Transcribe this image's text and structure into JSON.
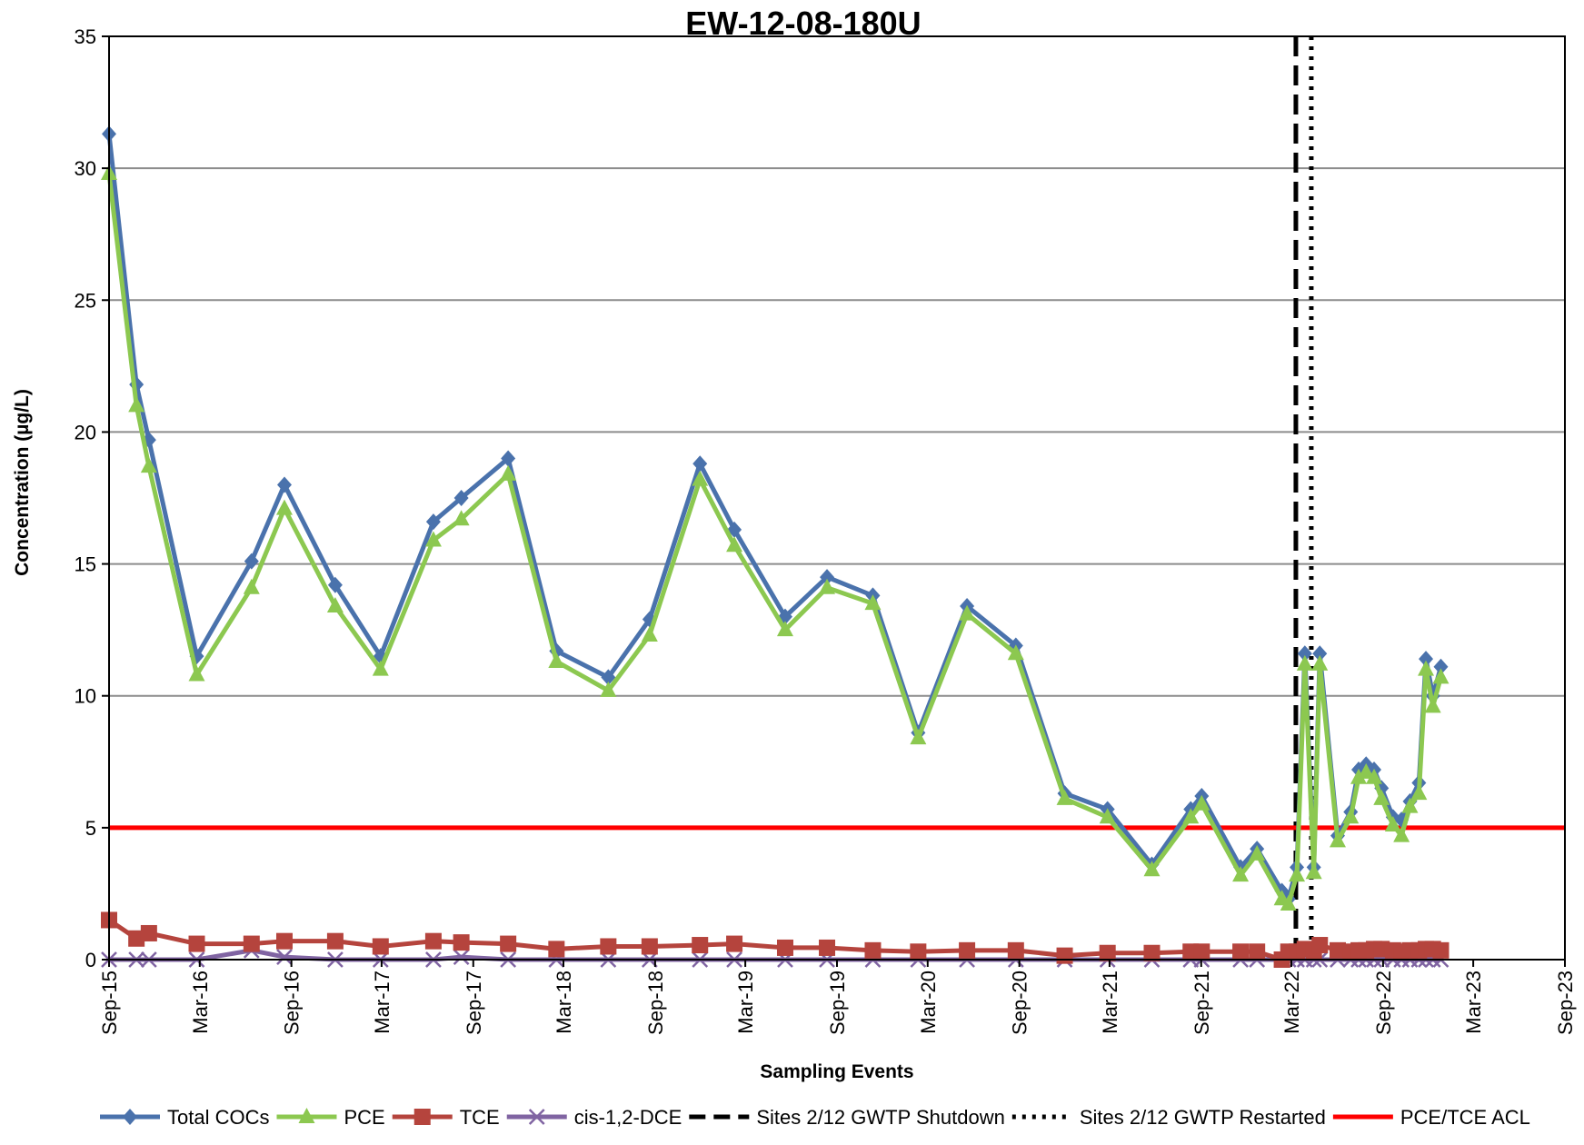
{
  "chart_data": {
    "type": "line",
    "title": "EW-12-08-180U",
    "xlabel": "Sampling Events",
    "ylabel": "Concentration (µg/L)",
    "x_axis": {
      "type": "date",
      "range": [
        "2015-09-01",
        "2023-09-01"
      ],
      "tick_labels": [
        {
          "date": "2015-09-01",
          "label": "Sep-15"
        },
        {
          "date": "2016-03-01",
          "label": "Mar-16"
        },
        {
          "date": "2016-09-01",
          "label": "Sep-16"
        },
        {
          "date": "2017-03-01",
          "label": "Mar-17"
        },
        {
          "date": "2017-09-01",
          "label": "Sep-17"
        },
        {
          "date": "2018-03-01",
          "label": "Mar-18"
        },
        {
          "date": "2018-09-01",
          "label": "Sep-18"
        },
        {
          "date": "2019-03-01",
          "label": "Mar-19"
        },
        {
          "date": "2019-09-01",
          "label": "Sep-19"
        },
        {
          "date": "2020-03-01",
          "label": "Mar-20"
        },
        {
          "date": "2020-09-01",
          "label": "Sep-20"
        },
        {
          "date": "2021-03-01",
          "label": "Mar-21"
        },
        {
          "date": "2021-09-01",
          "label": "Sep-21"
        },
        {
          "date": "2022-03-01",
          "label": "Mar-22"
        },
        {
          "date": "2022-09-01",
          "label": "Sep-22"
        },
        {
          "date": "2023-03-01",
          "label": "Mar-23"
        },
        {
          "date": "2023-09-01",
          "label": "Sep-23"
        }
      ]
    },
    "y_axis": {
      "range": [
        0,
        35
      ],
      "ticks": [
        0,
        5,
        10,
        15,
        20,
        25,
        30,
        35
      ]
    },
    "grid": "horizontal",
    "legend_position": "bottom",
    "series": [
      {
        "name": "Total COCs",
        "color": "#4a72ac",
        "marker": "diamond",
        "points": [
          [
            "2015-09-01",
            31.3
          ],
          [
            "2015-10-26",
            21.8
          ],
          [
            "2015-11-20",
            19.7
          ],
          [
            "2016-02-24",
            11.5
          ],
          [
            "2016-06-13",
            15.1
          ],
          [
            "2016-08-18",
            18.0
          ],
          [
            "2016-11-28",
            14.2
          ],
          [
            "2017-02-27",
            11.5
          ],
          [
            "2017-06-13",
            16.6
          ],
          [
            "2017-08-08",
            17.5
          ],
          [
            "2017-11-10",
            19.0
          ],
          [
            "2018-02-15",
            11.7
          ],
          [
            "2018-05-30",
            10.7
          ],
          [
            "2018-08-21",
            12.9
          ],
          [
            "2018-11-30",
            18.8
          ],
          [
            "2019-02-07",
            16.3
          ],
          [
            "2019-05-20",
            13.0
          ],
          [
            "2019-08-12",
            14.5
          ],
          [
            "2019-11-12",
            13.8
          ],
          [
            "2020-02-11",
            8.6
          ],
          [
            "2020-05-19",
            13.4
          ],
          [
            "2020-08-25",
            11.9
          ],
          [
            "2020-12-01",
            6.3
          ],
          [
            "2021-02-25",
            5.7
          ],
          [
            "2021-05-25",
            3.6
          ],
          [
            "2021-08-11",
            5.7
          ],
          [
            "2021-09-02",
            6.2
          ],
          [
            "2021-11-19",
            3.5
          ],
          [
            "2021-12-22",
            4.2
          ],
          [
            "2022-02-10",
            2.6
          ],
          [
            "2022-02-23",
            2.3
          ],
          [
            "2022-03-12",
            3.5
          ],
          [
            "2022-03-28",
            11.6
          ],
          [
            "2022-04-15",
            3.5
          ],
          [
            "2022-04-27",
            11.6
          ],
          [
            "2022-06-02",
            4.7
          ],
          [
            "2022-06-28",
            5.6
          ],
          [
            "2022-07-14",
            7.2
          ],
          [
            "2022-07-29",
            7.4
          ],
          [
            "2022-08-14",
            7.2
          ],
          [
            "2022-08-29",
            6.5
          ],
          [
            "2022-09-21",
            5.4
          ],
          [
            "2022-10-08",
            5.3
          ],
          [
            "2022-10-25",
            6.0
          ],
          [
            "2022-11-12",
            6.7
          ],
          [
            "2022-11-26",
            11.4
          ],
          [
            "2022-12-10",
            10.0
          ],
          [
            "2022-12-26",
            11.1
          ]
        ]
      },
      {
        "name": "PCE",
        "color": "#8cc850",
        "marker": "triangle",
        "points": [
          [
            "2015-09-01",
            29.8
          ],
          [
            "2015-10-26",
            21.0
          ],
          [
            "2015-11-20",
            18.7
          ],
          [
            "2016-02-24",
            10.8
          ],
          [
            "2016-06-13",
            14.1
          ],
          [
            "2016-08-18",
            17.1
          ],
          [
            "2016-11-28",
            13.4
          ],
          [
            "2017-02-27",
            11.0
          ],
          [
            "2017-06-13",
            15.9
          ],
          [
            "2017-08-08",
            16.7
          ],
          [
            "2017-11-10",
            18.4
          ],
          [
            "2018-02-15",
            11.3
          ],
          [
            "2018-05-30",
            10.2
          ],
          [
            "2018-08-21",
            12.3
          ],
          [
            "2018-11-30",
            18.2
          ],
          [
            "2019-02-07",
            15.7
          ],
          [
            "2019-05-20",
            12.5
          ],
          [
            "2019-08-12",
            14.1
          ],
          [
            "2019-11-12",
            13.5
          ],
          [
            "2020-02-11",
            8.4
          ],
          [
            "2020-05-19",
            13.1
          ],
          [
            "2020-08-25",
            11.6
          ],
          [
            "2020-12-01",
            6.1
          ],
          [
            "2021-02-25",
            5.4
          ],
          [
            "2021-05-25",
            3.4
          ],
          [
            "2021-08-11",
            5.4
          ],
          [
            "2021-09-02",
            5.9
          ],
          [
            "2021-11-19",
            3.2
          ],
          [
            "2021-12-22",
            4.0
          ],
          [
            "2022-02-10",
            2.3
          ],
          [
            "2022-02-23",
            2.1
          ],
          [
            "2022-03-12",
            3.2
          ],
          [
            "2022-03-28",
            11.2
          ],
          [
            "2022-04-15",
            3.3
          ],
          [
            "2022-04-27",
            11.2
          ],
          [
            "2022-06-02",
            4.5
          ],
          [
            "2022-06-28",
            5.4
          ],
          [
            "2022-07-14",
            6.9
          ],
          [
            "2022-07-29",
            7.1
          ],
          [
            "2022-08-14",
            6.9
          ],
          [
            "2022-08-29",
            6.1
          ],
          [
            "2022-09-21",
            5.1
          ],
          [
            "2022-10-08",
            4.7
          ],
          [
            "2022-10-25",
            5.8
          ],
          [
            "2022-11-12",
            6.3
          ],
          [
            "2022-11-26",
            11.0
          ],
          [
            "2022-12-10",
            9.6
          ],
          [
            "2022-12-26",
            10.7
          ]
        ]
      },
      {
        "name": "TCE",
        "color": "#b5443d",
        "marker": "square",
        "points": [
          [
            "2015-09-01",
            1.5
          ],
          [
            "2015-10-26",
            0.8
          ],
          [
            "2015-11-20",
            1.0
          ],
          [
            "2016-02-24",
            0.6
          ],
          [
            "2016-06-13",
            0.6
          ],
          [
            "2016-08-18",
            0.7
          ],
          [
            "2016-11-28",
            0.7
          ],
          [
            "2017-02-27",
            0.5
          ],
          [
            "2017-06-13",
            0.7
          ],
          [
            "2017-08-08",
            0.65
          ],
          [
            "2017-11-10",
            0.6
          ],
          [
            "2018-02-15",
            0.4
          ],
          [
            "2018-05-30",
            0.5
          ],
          [
            "2018-08-21",
            0.5
          ],
          [
            "2018-11-30",
            0.55
          ],
          [
            "2019-02-07",
            0.6
          ],
          [
            "2019-05-20",
            0.45
          ],
          [
            "2019-08-12",
            0.45
          ],
          [
            "2019-11-12",
            0.35
          ],
          [
            "2020-02-11",
            0.3
          ],
          [
            "2020-05-19",
            0.35
          ],
          [
            "2020-08-25",
            0.35
          ],
          [
            "2020-12-01",
            0.15
          ],
          [
            "2021-02-25",
            0.25
          ],
          [
            "2021-05-25",
            0.25
          ],
          [
            "2021-08-11",
            0.3
          ],
          [
            "2021-09-02",
            0.3
          ],
          [
            "2021-11-19",
            0.3
          ],
          [
            "2021-12-22",
            0.3
          ],
          [
            "2022-02-10",
            0.0
          ],
          [
            "2022-02-23",
            0.3
          ],
          [
            "2022-03-12",
            0.3
          ],
          [
            "2022-03-28",
            0.4
          ],
          [
            "2022-04-15",
            0.3
          ],
          [
            "2022-04-27",
            0.55
          ],
          [
            "2022-06-02",
            0.35
          ],
          [
            "2022-06-28",
            0.3
          ],
          [
            "2022-07-14",
            0.35
          ],
          [
            "2022-07-29",
            0.35
          ],
          [
            "2022-08-14",
            0.4
          ],
          [
            "2022-08-29",
            0.4
          ],
          [
            "2022-09-21",
            0.35
          ],
          [
            "2022-10-08",
            0.3
          ],
          [
            "2022-10-25",
            0.35
          ],
          [
            "2022-11-12",
            0.35
          ],
          [
            "2022-11-26",
            0.4
          ],
          [
            "2022-12-10",
            0.4
          ],
          [
            "2022-12-26",
            0.35
          ]
        ]
      },
      {
        "name": "cis-1,2-DCE",
        "color": "#8064a2",
        "marker": "x",
        "points": [
          [
            "2015-09-01",
            0
          ],
          [
            "2015-10-26",
            0
          ],
          [
            "2015-11-20",
            0
          ],
          [
            "2016-02-24",
            0
          ],
          [
            "2016-06-13",
            0.35
          ],
          [
            "2016-08-18",
            0.1
          ],
          [
            "2016-11-28",
            0
          ],
          [
            "2017-02-27",
            0
          ],
          [
            "2017-06-13",
            0
          ],
          [
            "2017-08-08",
            0.1
          ],
          [
            "2017-11-10",
            0
          ],
          [
            "2018-02-15",
            0
          ],
          [
            "2018-05-30",
            0
          ],
          [
            "2018-08-21",
            0
          ],
          [
            "2018-11-30",
            0
          ],
          [
            "2019-02-07",
            0
          ],
          [
            "2019-05-20",
            0
          ],
          [
            "2019-08-12",
            0
          ],
          [
            "2019-11-12",
            0
          ],
          [
            "2020-02-11",
            0
          ],
          [
            "2020-05-19",
            0
          ],
          [
            "2020-08-25",
            0
          ],
          [
            "2020-12-01",
            0
          ],
          [
            "2021-02-25",
            0
          ],
          [
            "2021-05-25",
            0
          ],
          [
            "2021-08-11",
            0
          ],
          [
            "2021-09-02",
            0
          ],
          [
            "2021-11-19",
            0
          ],
          [
            "2021-12-22",
            0
          ],
          [
            "2022-02-10",
            0
          ],
          [
            "2022-02-23",
            0
          ],
          [
            "2022-03-12",
            0
          ],
          [
            "2022-03-28",
            0
          ],
          [
            "2022-04-15",
            0
          ],
          [
            "2022-04-27",
            0
          ],
          [
            "2022-06-02",
            0
          ],
          [
            "2022-06-28",
            0
          ],
          [
            "2022-07-14",
            0
          ],
          [
            "2022-07-29",
            0
          ],
          [
            "2022-08-14",
            0
          ],
          [
            "2022-08-29",
            0
          ],
          [
            "2022-09-21",
            0
          ],
          [
            "2022-10-08",
            0
          ],
          [
            "2022-10-25",
            0
          ],
          [
            "2022-11-12",
            0
          ],
          [
            "2022-11-26",
            0
          ],
          [
            "2022-12-10",
            0
          ],
          [
            "2022-12-26",
            0
          ]
        ]
      }
    ],
    "reference_lines": [
      {
        "name": "Sites 2/12 GWTP Shutdown",
        "orientation": "vertical",
        "x": "2022-03-10",
        "style": "dashed",
        "color": "#000000"
      },
      {
        "name": "Sites 2/12 GWTP Restarted",
        "orientation": "vertical",
        "x": "2022-04-10",
        "style": "dotted",
        "color": "#000000"
      },
      {
        "name": "PCE/TCE ACL",
        "orientation": "horizontal",
        "y": 5,
        "style": "solid",
        "color": "#ff0000"
      }
    ]
  }
}
